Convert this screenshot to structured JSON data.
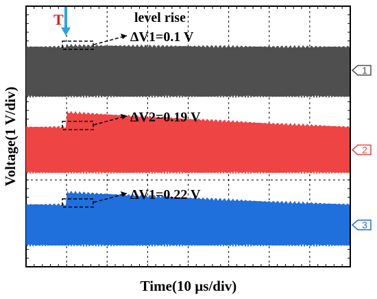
{
  "chart_data": {
    "type": "line",
    "xlabel": "Time(10 µs/div)",
    "ylabel": "Voltage(1 V/div)",
    "grid": true,
    "x_divisions": 8,
    "y_divisions": 6,
    "trigger_label": "T",
    "top_note": "level rise",
    "series": [
      {
        "name": "1",
        "color": "#4f4f4f",
        "annotation": "ΔV1=0.1 V",
        "level_rise_V": 0.1
      },
      {
        "name": "2",
        "color": "#ee4444",
        "annotation": "ΔV2=0.19 V",
        "level_rise_V": 0.19
      },
      {
        "name": "3",
        "color": "#1f6fdd",
        "annotation": "ΔV1=0.22 V",
        "level_rise_V": 0.22
      }
    ]
  }
}
